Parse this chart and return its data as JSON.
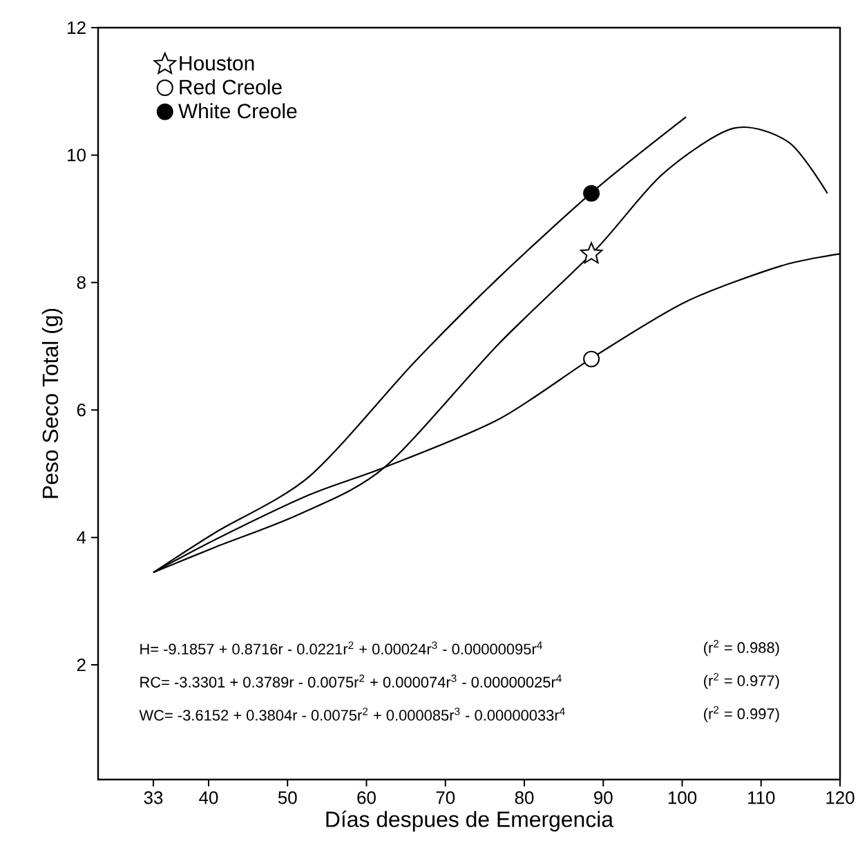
{
  "chart_data": {
    "type": "line",
    "xlabel": "Días despues de Emergencia",
    "ylabel": "Peso Seco Total (g)",
    "xlim": [
      26,
      120
    ],
    "ylim": [
      0.2,
      12
    ],
    "xticks": [
      33,
      40,
      50,
      60,
      70,
      80,
      90,
      100,
      110,
      120
    ],
    "yticks": [
      2,
      4,
      6,
      8,
      10,
      12
    ],
    "grid": false,
    "legend": "top left",
    "line_style": "solid",
    "series": [
      {
        "marker": "none",
        "color": "#000000",
        "x": [
          33,
          40.9,
          52.8,
          66,
          76.7,
          89,
          100.5
        ],
        "values": [
          3.45,
          4.08,
          4.96,
          6.74,
          8.07,
          9.46,
          10.6
        ]
      },
      {
        "marker": "none",
        "color": "#000000",
        "x": [
          33,
          40.9,
          51.6,
          62.3,
          76.7,
          89,
          97.5,
          106.5,
          113.5,
          118.4
        ],
        "values": [
          3.45,
          3.85,
          4.37,
          5.1,
          7.03,
          8.51,
          9.7,
          10.42,
          10.2,
          9.4
        ]
      },
      {
        "marker": "none",
        "color": "#000000",
        "x": [
          33,
          40.9,
          52.8,
          62.3,
          76.7,
          89,
          100.5,
          112.5,
          120
        ],
        "values": [
          3.45,
          3.97,
          4.67,
          5.1,
          5.85,
          6.85,
          7.7,
          8.26,
          8.45
        ]
      },
      {
        "type": "scatter",
        "name": "Houston",
        "marker": "star",
        "color": "#ffffff",
        "x": [
          88.5
        ],
        "values": [
          8.45
        ]
      },
      {
        "type": "scatter",
        "name": "Red Creole",
        "marker": "circle",
        "color": "#ffffff",
        "x": [
          88.5
        ],
        "values": [
          6.8
        ]
      },
      {
        "type": "scatter",
        "name": "White Creole",
        "marker": "circle",
        "color": "#000000",
        "x": [
          88.5
        ],
        "values": [
          9.4
        ]
      }
    ],
    "annotations": [
      "H= -9.1857 + 0.8716r - 0.0221r$^{2}$ + 0.00024r$^{3}$ - 0.00000095r$^{4}$",
      "(r$^{2}$ = 0.988)",
      "RC= -3.3301 + 0.3789r - 0.0075r$^{2}$ + 0.000074r$^{3}$ - 0.00000025r$^{4}$",
      "(r$^{2}$ = 0.977)",
      "WC= -3.6152 + 0.3804r - 0.0075r$^{2}$ + 0.000085r$^{3}$ - 0.00000033r$^{4}$",
      "(r$^{2}$ = 0.997)"
    ]
  }
}
